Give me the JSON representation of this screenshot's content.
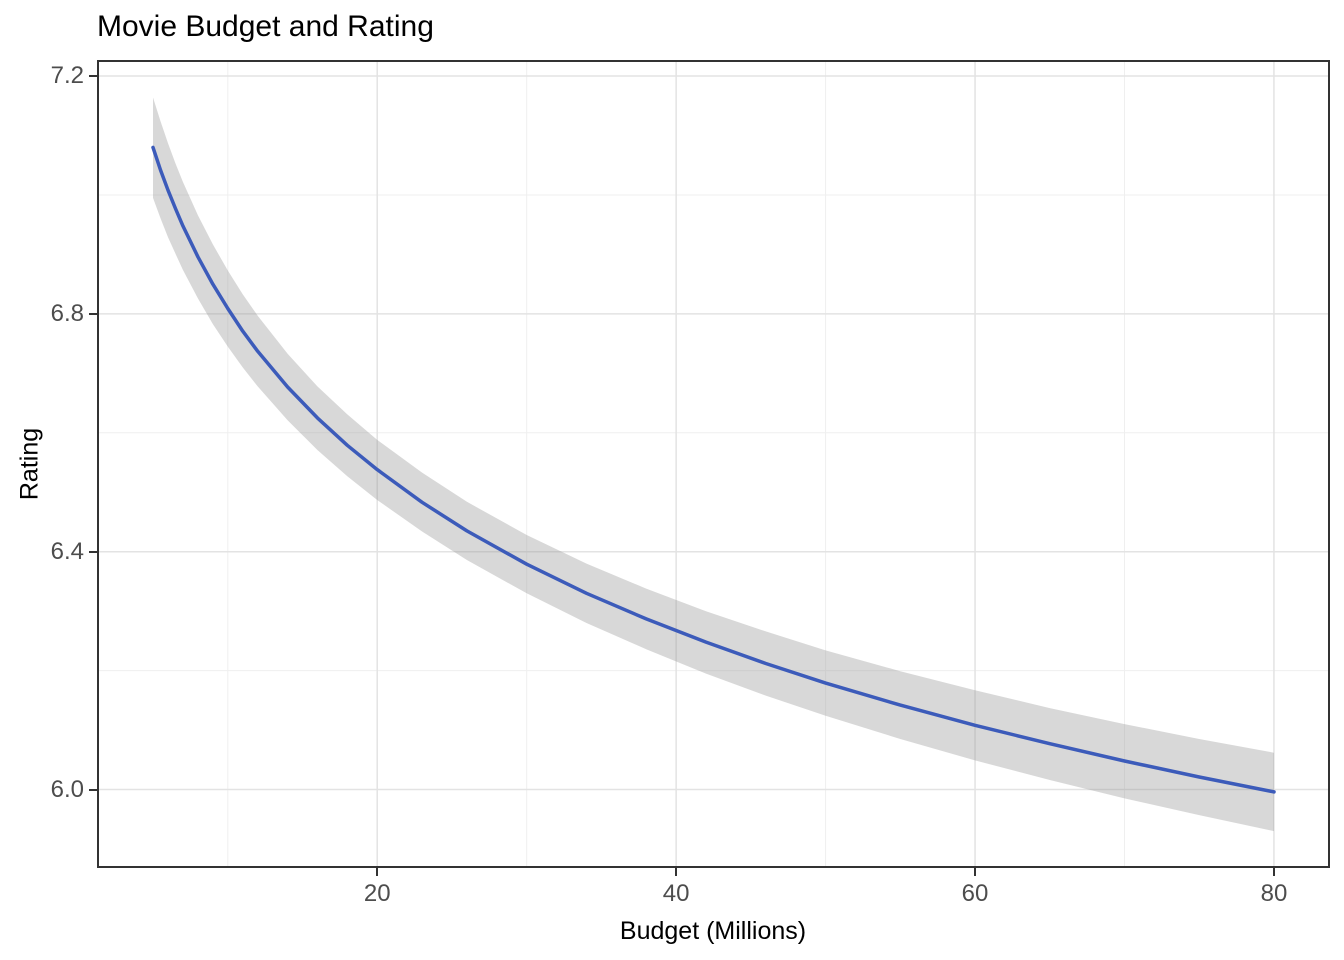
{
  "chart_data": {
    "type": "line",
    "title": "Movie Budget and Rating",
    "xlabel": "Budget (Millions)",
    "ylabel": "Rating",
    "xlim": [
      1.25,
      83.75
    ],
    "ylim": [
      5.868,
      7.227
    ],
    "x_ticks": [
      20,
      40,
      60,
      80
    ],
    "x_tick_labels": [
      "20",
      "40",
      "60",
      "80"
    ],
    "x_minor_ticks": [
      10,
      30,
      50,
      70
    ],
    "y_ticks": [
      6.0,
      6.4,
      6.8,
      7.2
    ],
    "y_tick_labels": [
      "6.0",
      "6.4",
      "6.8",
      "7.2"
    ],
    "y_minor_ticks": [
      6.2,
      6.6,
      7.0
    ],
    "grid": true,
    "legend_position": "none",
    "style": {
      "line_color": "#3C5BBA",
      "band_fill": "rgba(153,153,153,0.38)",
      "major_grid_color": "#E3E3E3",
      "minor_grid_color": "#EFEFEF",
      "panel_border_color": "#333333",
      "tick_color": "#333333",
      "tick_label_color": "#4D4D4D",
      "text_color": "#000000",
      "background": "#FFFFFF"
    },
    "series": [
      {
        "name": "smoothed-fit-with-confidence-band",
        "x": [
          5,
          5.5,
          6,
          6.5,
          7,
          8,
          9,
          10,
          11,
          12,
          14,
          16,
          18,
          20,
          23,
          26,
          30,
          34,
          38,
          42,
          46,
          50,
          55,
          60,
          65,
          70,
          75,
          80
        ],
        "y": [
          7.08,
          7.042,
          7.008,
          6.977,
          6.948,
          6.896,
          6.85,
          6.809,
          6.771,
          6.737,
          6.677,
          6.625,
          6.579,
          6.538,
          6.483,
          6.435,
          6.379,
          6.33,
          6.287,
          6.248,
          6.212,
          6.179,
          6.142,
          6.108,
          6.077,
          6.048,
          6.021,
          5.996
        ],
        "ci_high": [
          7.164,
          7.124,
          7.087,
          7.053,
          7.022,
          6.966,
          6.917,
          6.873,
          6.833,
          6.797,
          6.733,
          6.678,
          6.631,
          6.588,
          6.533,
          6.484,
          6.428,
          6.38,
          6.338,
          6.3,
          6.266,
          6.234,
          6.199,
          6.167,
          6.137,
          6.11,
          6.085,
          6.062
        ],
        "ci_low": [
          6.995,
          6.961,
          6.929,
          6.901,
          6.874,
          6.826,
          6.783,
          6.745,
          6.71,
          6.678,
          6.621,
          6.571,
          6.527,
          6.487,
          6.434,
          6.386,
          6.33,
          6.28,
          6.236,
          6.195,
          6.158,
          6.124,
          6.085,
          6.049,
          6.016,
          5.985,
          5.957,
          5.93
        ]
      }
    ]
  }
}
